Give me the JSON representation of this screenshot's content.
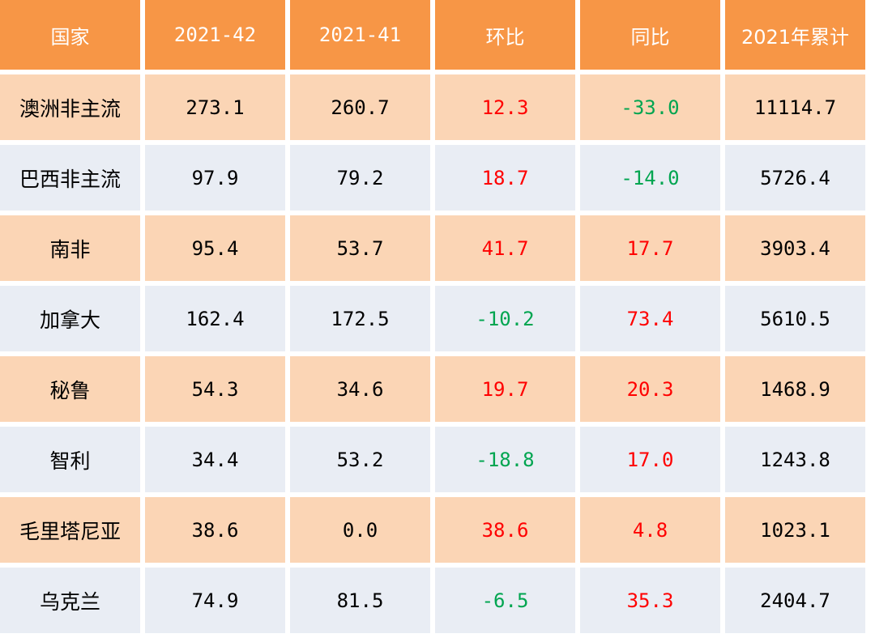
{
  "chart_data": {
    "type": "table",
    "columns": [
      "国家",
      "2021-42",
      "2021-41",
      "环比",
      "同比",
      "2021年累计"
    ],
    "rows": [
      {
        "country": "澳洲非主流",
        "w42": "273.1",
        "w41": "260.7",
        "mom": "12.3",
        "yoy": "-33.0",
        "ytd": "11114.7"
      },
      {
        "country": "巴西非主流",
        "w42": "97.9",
        "w41": "79.2",
        "mom": "18.7",
        "yoy": "-14.0",
        "ytd": "5726.4"
      },
      {
        "country": "南非",
        "w42": "95.4",
        "w41": "53.7",
        "mom": "41.7",
        "yoy": "17.7",
        "ytd": "3903.4"
      },
      {
        "country": "加拿大",
        "w42": "162.4",
        "w41": "172.5",
        "mom": "-10.2",
        "yoy": "73.4",
        "ytd": "5610.5"
      },
      {
        "country": "秘鲁",
        "w42": "54.3",
        "w41": "34.6",
        "mom": "19.7",
        "yoy": "20.3",
        "ytd": "1468.9"
      },
      {
        "country": "智利",
        "w42": "34.4",
        "w41": "53.2",
        "mom": "-18.8",
        "yoy": "17.0",
        "ytd": "1243.8"
      },
      {
        "country": "毛里塔尼亚",
        "w42": "38.6",
        "w41": "0.0",
        "mom": "38.6",
        "yoy": "4.8",
        "ytd": "1023.1"
      },
      {
        "country": "乌克兰",
        "w42": "74.9",
        "w41": "81.5",
        "mom": "-6.5",
        "yoy": "35.3",
        "ytd": "2404.7"
      }
    ]
  },
  "colors": {
    "header_bg": "#f79646",
    "header_text": "#ffffff",
    "row_odd_bg": "#fbd5b5",
    "row_even_bg": "#e9edf4",
    "positive_change": "#ff0000",
    "negative_change": "#00a550"
  }
}
